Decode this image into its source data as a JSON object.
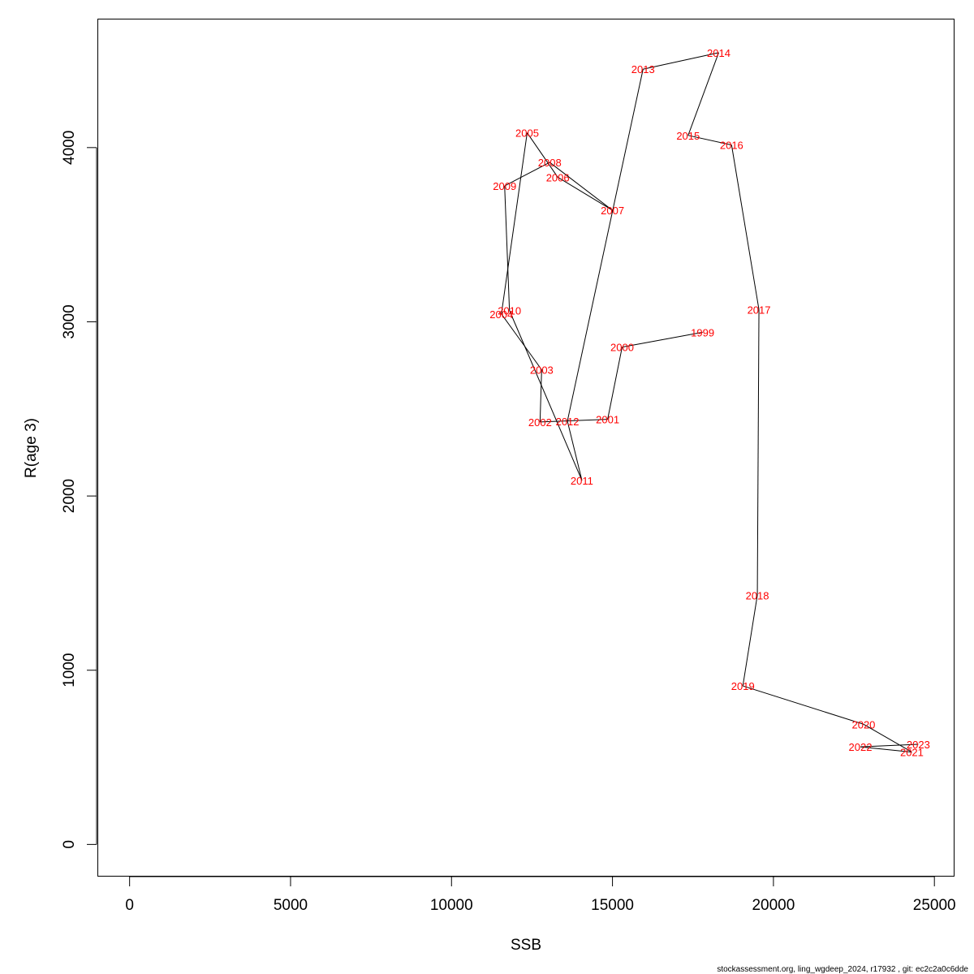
{
  "chart_data": {
    "type": "line",
    "title": "",
    "xlabel": "SSB",
    "ylabel": "R(age 3)",
    "xlim": [
      -1000,
      25600
    ],
    "ylim": [
      -180,
      4740
    ],
    "x_ticks": [
      0,
      5000,
      10000,
      15000,
      20000,
      25000
    ],
    "y_ticks": [
      0,
      1000,
      2000,
      3000,
      4000
    ],
    "grid": false,
    "line_color": "#000000",
    "label_color": "#ff0000",
    "points": [
      {
        "year": "1999",
        "ssb": 17800,
        "r": 2940
      },
      {
        "year": "2000",
        "ssb": 15300,
        "r": 2855
      },
      {
        "year": "2001",
        "ssb": 14850,
        "r": 2440
      },
      {
        "year": "2002",
        "ssb": 12750,
        "r": 2425
      },
      {
        "year": "2003",
        "ssb": 12800,
        "r": 2725
      },
      {
        "year": "2004",
        "ssb": 11550,
        "r": 3045
      },
      {
        "year": "2005",
        "ssb": 12350,
        "r": 4085
      },
      {
        "year": "2006",
        "ssb": 13300,
        "r": 3830
      },
      {
        "year": "2007",
        "ssb": 15000,
        "r": 3640
      },
      {
        "year": "2008",
        "ssb": 13050,
        "r": 3915
      },
      {
        "year": "2009",
        "ssb": 11650,
        "r": 3780
      },
      {
        "year": "2010",
        "ssb": 11800,
        "r": 3065
      },
      {
        "year": "2011",
        "ssb": 14050,
        "r": 2090
      },
      {
        "year": "2012",
        "ssb": 13600,
        "r": 2430
      },
      {
        "year": "2013",
        "ssb": 15950,
        "r": 4450
      },
      {
        "year": "2014",
        "ssb": 18300,
        "r": 4545
      },
      {
        "year": "2015",
        "ssb": 17350,
        "r": 4070
      },
      {
        "year": "2016",
        "ssb": 18700,
        "r": 4015
      },
      {
        "year": "2017",
        "ssb": 19550,
        "r": 3070
      },
      {
        "year": "2018",
        "ssb": 19500,
        "r": 1430
      },
      {
        "year": "2019",
        "ssb": 19050,
        "r": 910
      },
      {
        "year": "2020",
        "ssb": 22800,
        "r": 690
      },
      {
        "year": "2021",
        "ssb": 24300,
        "r": 530
      },
      {
        "year": "2022",
        "ssb": 22700,
        "r": 560
      },
      {
        "year": "2023",
        "ssb": 24500,
        "r": 575
      }
    ]
  },
  "footer": {
    "text": "stockassessment.org, ling_wgdeep_2024, r17932 , git: ec2c2a0c6dde"
  }
}
